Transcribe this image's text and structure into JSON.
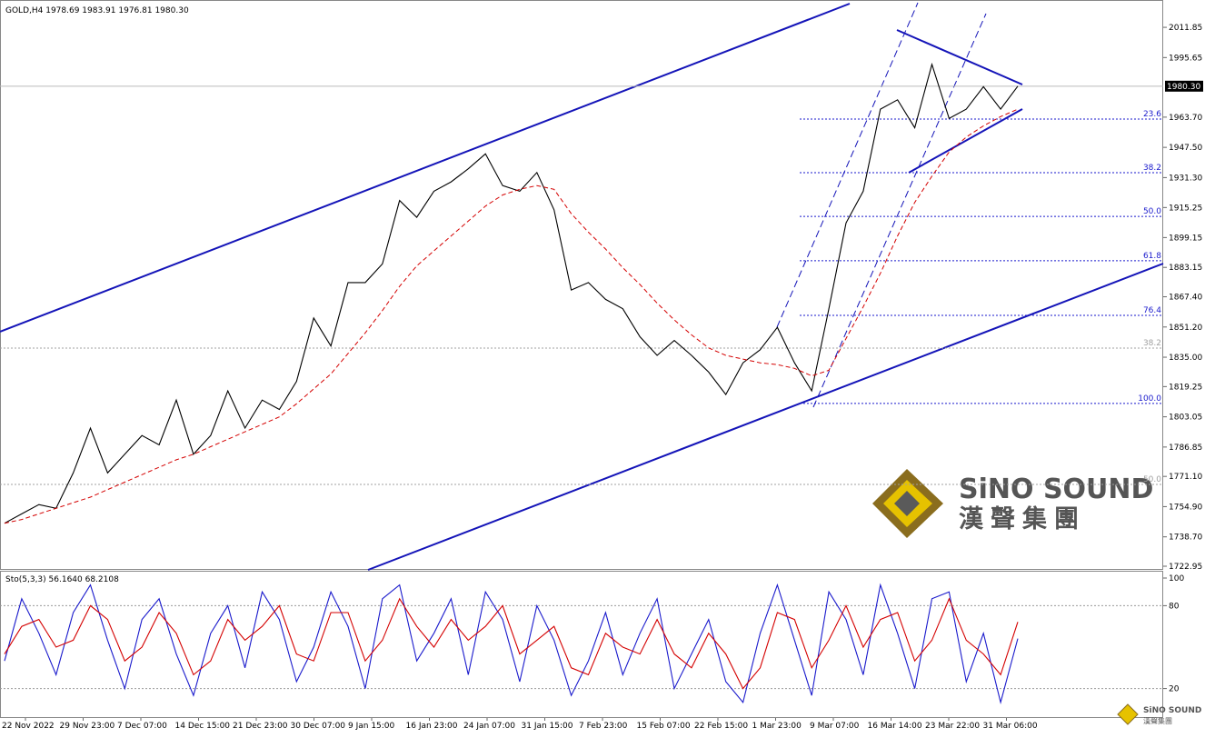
{
  "chart_data": [
    {
      "type": "line",
      "title": "GOLD,H4  1978.69 1983.91 1976.81 1980.30",
      "series": [
        {
          "color": "#000000",
          "values": [
            1746,
            1751,
            1756,
            1754,
            1773,
            1797,
            1773,
            1783,
            1793,
            1788,
            1812,
            1783,
            1793,
            1817,
            1797,
            1812,
            1807,
            1822,
            1856,
            1841,
            1875,
            1875,
            1885,
            1919,
            1910,
            1924,
            1929,
            1936,
            1944,
            1927,
            1924,
            1934,
            1914,
            1871,
            1875,
            1866,
            1861,
            1846,
            1836,
            1844,
            1836,
            1827,
            1815,
            1832,
            1839,
            1851,
            1832,
            1817,
            1861,
            1907,
            1924,
            1968,
            1973,
            1958,
            1992,
            1963,
            1968,
            1980,
            1968,
            1980.3
          ]
        },
        {
          "color": "#d40000",
          "values": [
            1746,
            1748,
            1751,
            1754,
            1757,
            1760,
            1764,
            1768,
            1772,
            1776,
            1780,
            1783,
            1787,
            1791,
            1795,
            1799,
            1803,
            1810,
            1818,
            1826,
            1837,
            1848,
            1860,
            1873,
            1884,
            1892,
            1900,
            1908,
            1916,
            1922,
            1925,
            1927,
            1925,
            1912,
            1902,
            1893,
            1883,
            1874,
            1864,
            1855,
            1847,
            1840,
            1836,
            1834,
            1832,
            1831,
            1829,
            1825,
            1828,
            1845,
            1862,
            1880,
            1900,
            1918,
            1932,
            1945,
            1953,
            1959,
            1964,
            1968
          ]
        }
      ],
      "ylim": [
        1721,
        2026.5
      ],
      "yticks": [
        {
          "value": 2011.85,
          "label": "2011.85"
        },
        {
          "value": 1995.65,
          "label": "1995.65"
        },
        {
          "value": 1963.7,
          "label": "1963.70"
        },
        {
          "value": 1947.5,
          "label": "1947.50"
        },
        {
          "value": 1931.3,
          "label": "1931.30"
        },
        {
          "value": 1915.25,
          "label": "1915.25"
        },
        {
          "value": 1899.15,
          "label": "1899.15"
        },
        {
          "value": 1883.15,
          "label": "1883.15"
        },
        {
          "value": 1867.4,
          "label": "1867.40"
        },
        {
          "value": 1851.2,
          "label": "1851.20"
        },
        {
          "value": 1835,
          "label": "1835.00"
        },
        {
          "value": 1819.25,
          "label": "1819.25"
        },
        {
          "value": 1803.05,
          "label": "1803.05"
        },
        {
          "value": 1786.85,
          "label": "1786.85"
        },
        {
          "value": 1771.1,
          "label": "1771.10"
        },
        {
          "value": 1754.9,
          "label": "1754.90"
        },
        {
          "value": 1738.7,
          "label": "1738.70"
        },
        {
          "value": 1722.95,
          "label": "1722.95"
        }
      ],
      "last_price": {
        "value": 1980.3,
        "label": "1980.30"
      },
      "fib_groups": [
        {
          "color": "#1a1acc",
          "levels": [
            {
              "value": 1962.7,
              "label": "23.6"
            },
            {
              "value": 1933.9,
              "label": "38.2"
            },
            {
              "value": 1910.5,
              "label": "50.0"
            },
            {
              "value": 1886.7,
              "label": "61.8"
            },
            {
              "value": 1857.4,
              "label": "76.4"
            },
            {
              "value": 1810.2,
              "label": "100.0"
            }
          ]
        },
        {
          "color": "#a0a0a0",
          "levels": [
            {
              "value": 1839.9,
              "label": "38.2"
            },
            {
              "value": 1766.8,
              "label": "50.0"
            }
          ]
        }
      ],
      "xticks": [
        "22 Nov 2022",
        "29 Nov 23:00",
        "7 Dec 07:00",
        "14 Dec 15:00",
        "21 Dec 23:00",
        "30 Dec 07:00",
        "9 Jan 15:00",
        "16 Jan 23:00",
        "24 Jan 07:00",
        "31 Jan 15:00",
        "7 Feb 23:00",
        "15 Feb 07:00",
        "22 Feb 15:00",
        "1 Mar 23:00",
        "9 Mar 07:00",
        "16 Mar 14:00",
        "23 Mar 22:00",
        "31 Mar 06:00"
      ]
    },
    {
      "type": "line",
      "title": "Sto(5,3,3) 56.1640 68.2108",
      "series": [
        {
          "color": "#1a1acc",
          "values": [
            40,
            85,
            60,
            30,
            75,
            95,
            55,
            20,
            70,
            85,
            45,
            15,
            60,
            80,
            35,
            90,
            70,
            25,
            50,
            90,
            65,
            20,
            85,
            95,
            40,
            60,
            85,
            30,
            90,
            70,
            25,
            80,
            55,
            15,
            40,
            75,
            30,
            60,
            85,
            20,
            45,
            70,
            25,
            10,
            60,
            95,
            55,
            15,
            90,
            70,
            30,
            95,
            60,
            20,
            85,
            90,
            25,
            60,
            10,
            56.164
          ]
        },
        {
          "color": "#d40000",
          "values": [
            45,
            65,
            70,
            50,
            55,
            80,
            70,
            40,
            50,
            75,
            60,
            30,
            40,
            70,
            55,
            65,
            80,
            45,
            40,
            75,
            75,
            40,
            55,
            85,
            65,
            50,
            70,
            55,
            65,
            80,
            45,
            55,
            65,
            35,
            30,
            60,
            50,
            45,
            70,
            45,
            35,
            60,
            45,
            20,
            35,
            75,
            70,
            35,
            55,
            80,
            50,
            70,
            75,
            40,
            55,
            85,
            55,
            45,
            30,
            68.2108
          ]
        }
      ],
      "ylim": [
        0,
        100
      ],
      "yticks": [
        100,
        80,
        20
      ]
    }
  ],
  "watermark": {
    "brand": "SiNO SOUND",
    "chinese": "漢聲集團"
  }
}
